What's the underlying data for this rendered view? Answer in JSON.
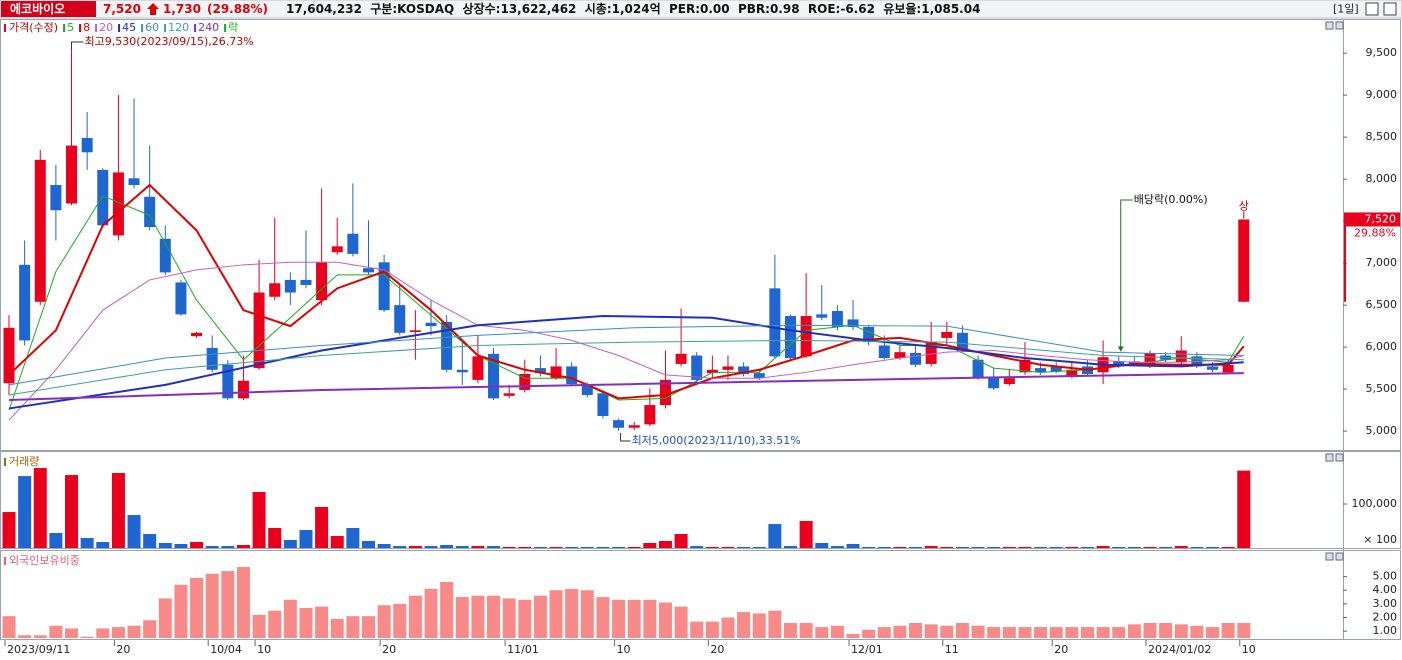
{
  "header": {
    "name": "에코바이오",
    "price": "7,520",
    "change": "1,730",
    "change_pct": "(29.88%)",
    "info": "17,604,232  구분:KOSDAQ  상장수:13,622,462  시총:1,024억  PER:0.00  PBR:0.98  ROE:-6.62  유보율:1,085.04",
    "period": "[1일]"
  },
  "chart_data": [
    {
      "type": "candlestick",
      "title": "가격(수정)",
      "ex_marker_label": "락",
      "up_color": "#e8001c",
      "down_color": "#1f66d1",
      "categories": [
        "2023/09/11",
        null,
        null,
        null,
        null,
        null,
        null,
        "20",
        null,
        null,
        null,
        null,
        null,
        "10/04",
        null,
        null,
        "10",
        null,
        null,
        null,
        null,
        null,
        null,
        null,
        "20",
        null,
        null,
        null,
        null,
        null,
        null,
        null,
        "11/01",
        null,
        null,
        null,
        null,
        null,
        null,
        "10",
        null,
        null,
        null,
        null,
        null,
        "20",
        null,
        null,
        null,
        null,
        null,
        null,
        null,
        null,
        "12/01",
        null,
        null,
        null,
        null,
        null,
        "11",
        null,
        null,
        null,
        null,
        null,
        null,
        "20",
        null,
        null,
        null,
        null,
        null,
        "2024/01/02",
        null,
        null,
        null,
        null,
        null,
        "10"
      ],
      "open": [
        5570,
        6980,
        6540,
        7930,
        7710,
        8490,
        8110,
        7330,
        8010,
        7790,
        7290,
        6770,
        6130,
        5990,
        5790,
        5390,
        5750,
        6600,
        6800,
        6800,
        6560,
        7130,
        7350,
        6940,
        7010,
        6500,
        6180,
        6290,
        6300,
        5730,
        5610,
        5920,
        5420,
        5490,
        5750,
        5630,
        5770,
        5560,
        5450,
        5130,
        5040,
        5080,
        5310,
        5800,
        5900,
        5690,
        5730,
        5770,
        5690,
        6700,
        6370,
        5890,
        6390,
        6430,
        6330,
        6240,
        6020,
        5870,
        5930,
        5800,
        6110,
        6170,
        5850,
        5650,
        5560,
        5700,
        5750,
        5770,
        5650,
        5770,
        5700,
        5830,
        5830,
        5770,
        5900,
        5820,
        5890,
        5770,
        5700,
        6540
      ],
      "high": [
        6380,
        7270,
        8350,
        8170,
        9530,
        8800,
        8130,
        9000,
        8960,
        8400,
        7450,
        6800,
        6180,
        6140,
        5850,
        5900,
        7040,
        7540,
        6890,
        7390,
        7890,
        7540,
        7950,
        7510,
        7100,
        6740,
        6440,
        6560,
        6380,
        6080,
        6140,
        5990,
        5550,
        5850,
        5900,
        5990,
        5820,
        5580,
        5480,
        5150,
        5110,
        5510,
        5960,
        6460,
        5940,
        5900,
        5900,
        5820,
        5730,
        7100,
        6390,
        6880,
        6740,
        6500,
        6560,
        6260,
        6140,
        6020,
        6020,
        6300,
        6300,
        6260,
        5900,
        5750,
        5730,
        6060,
        5820,
        5820,
        5820,
        5850,
        6080,
        5900,
        5890,
        5960,
        5940,
        6130,
        5940,
        5820,
        5850,
        7520
      ],
      "low": [
        5430,
        6020,
        6500,
        7270,
        7690,
        8110,
        7420,
        7270,
        7890,
        7390,
        6860,
        6370,
        6110,
        5700,
        5370,
        5370,
        5730,
        6560,
        6500,
        6700,
        6500,
        7100,
        7080,
        6860,
        6420,
        6140,
        5850,
        6140,
        5700,
        5550,
        5570,
        5370,
        5390,
        5460,
        5650,
        5610,
        5540,
        5400,
        5150,
        5000,
        5010,
        5060,
        5270,
        5770,
        5570,
        5630,
        5610,
        5650,
        5610,
        5870,
        5850,
        5870,
        6320,
        6200,
        6200,
        6020,
        5850,
        5850,
        5760,
        5770,
        6020,
        5940,
        5610,
        5490,
        5540,
        5670,
        5670,
        5690,
        5630,
        5650,
        5560,
        5750,
        5770,
        5750,
        5820,
        5800,
        5750,
        5700,
        5680,
        6540
      ],
      "close": [
        6230,
        6080,
        8230,
        7630,
        8400,
        8320,
        7450,
        8080,
        7930,
        7430,
        6890,
        6390,
        6170,
        5730,
        5390,
        5600,
        6650,
        6760,
        6650,
        6740,
        7010,
        7200,
        7110,
        6890,
        6440,
        6170,
        6200,
        6250,
        5730,
        5700,
        5890,
        5390,
        5450,
        5680,
        5690,
        5770,
        5560,
        5430,
        5180,
        5040,
        5070,
        5310,
        5610,
        5920,
        5610,
        5730,
        5770,
        5680,
        5630,
        5890,
        5870,
        6370,
        6350,
        6240,
        6240,
        6060,
        5870,
        5940,
        5790,
        6060,
        6180,
        5960,
        5630,
        5510,
        5630,
        5850,
        5700,
        5710,
        5730,
        5680,
        5880,
        5770,
        5800,
        5930,
        5850,
        5960,
        5770,
        5730,
        5790,
        7520
      ],
      "series": [
        {
          "name": "5",
          "color": "#1faa1f",
          "x": [
            0,
            3,
            6,
            9,
            12,
            15,
            18,
            21,
            24,
            27,
            30,
            33,
            36,
            39,
            42,
            45,
            48,
            51,
            54,
            57,
            60,
            63,
            66,
            69,
            72,
            75,
            78,
            79
          ],
          "values": [
            5250,
            6900,
            7800,
            7570,
            6560,
            5850,
            6350,
            6860,
            6860,
            6380,
            5900,
            5630,
            5630,
            5370,
            5390,
            5700,
            5700,
            6200,
            6260,
            6020,
            6020,
            5750,
            5700,
            5730,
            5800,
            5870,
            5820,
            6130
          ]
        },
        {
          "name": "8",
          "color": "#e00000",
          "x": [
            0,
            3,
            6,
            9,
            12,
            15,
            18,
            21,
            24,
            27,
            30,
            33,
            36,
            39,
            42,
            45,
            48,
            51,
            54,
            57,
            60,
            63,
            66,
            69,
            72,
            75,
            78,
            79
          ],
          "values": [
            5670,
            6200,
            7450,
            7930,
            7390,
            6440,
            6250,
            6700,
            6900,
            6440,
            5900,
            5730,
            5630,
            5390,
            5430,
            5630,
            5730,
            5900,
            6080,
            6110,
            6020,
            5900,
            5790,
            5730,
            5800,
            5790,
            5790,
            6010
          ]
        },
        {
          "name": "20",
          "color": "#c060c0",
          "x": [
            0,
            3,
            6,
            9,
            12,
            15,
            18,
            21,
            24,
            27,
            30,
            33,
            36,
            39,
            42,
            45,
            48,
            51,
            54,
            57,
            60,
            63,
            66,
            69,
            72,
            75,
            78,
            79
          ],
          "values": [
            5130,
            5730,
            6440,
            6800,
            6920,
            6980,
            7010,
            7010,
            6920,
            6560,
            6260,
            6200,
            6080,
            5900,
            5670,
            5630,
            5630,
            5700,
            5790,
            5870,
            5940,
            5960,
            5900,
            5850,
            5820,
            5820,
            5850,
            5900
          ]
        },
        {
          "name": "45",
          "color": "#1f2fbf",
          "x": [
            0,
            10,
            20,
            30,
            38,
            45,
            50,
            55,
            60,
            65,
            70,
            75,
            79
          ],
          "values": [
            5270,
            5550,
            5960,
            6260,
            6370,
            6350,
            6200,
            6080,
            5990,
            5870,
            5790,
            5770,
            5820
          ]
        },
        {
          "name": "60",
          "color": "#3a8ec0",
          "x": [
            0,
            10,
            20,
            30,
            40,
            50,
            60,
            70,
            79
          ],
          "values": [
            5550,
            5870,
            6020,
            6140,
            6230,
            6260,
            6250,
            5940,
            5900
          ]
        },
        {
          "name": "120",
          "color": "#40a0a0",
          "x": [
            0,
            10,
            20,
            30,
            40,
            50,
            60,
            70,
            79
          ],
          "values": [
            5430,
            5730,
            5900,
            6020,
            6060,
            6080,
            6060,
            5900,
            5850
          ]
        },
        {
          "name": "240",
          "color": "#8030c0",
          "x": [
            0,
            20,
            40,
            60,
            79
          ],
          "values": [
            5370,
            5490,
            5560,
            5630,
            5690
          ]
        }
      ],
      "annotations": [
        "최고9,530(2023/09/15),26.73%",
        "최저5,000(2023/11/10),33.51%",
        "배당락(0.00%)",
        "상"
      ],
      "price_tag": "7,520",
      "price_tag_change": "29.88%",
      "ylim": [
        4775,
        9895
      ],
      "yticks": [
        {
          "value": 5000,
          "label": "5,000"
        },
        {
          "value": 5500,
          "label": "5,500"
        },
        {
          "value": 6000,
          "label": "6,000"
        },
        {
          "value": 6500,
          "label": "6,500"
        },
        {
          "value": 7000,
          "label": "7,000"
        },
        {
          "value": 7500,
          "label": "7,500"
        },
        {
          "value": 8000,
          "label": "8,000"
        },
        {
          "value": 8500,
          "label": "8,500"
        },
        {
          "value": 9000,
          "label": "9,000"
        },
        {
          "value": 9500,
          "label": "9,500"
        }
      ]
    },
    {
      "type": "bar",
      "title": "거래량",
      "unit_label": "× 100",
      "values": [
        81800,
        163600,
        181800,
        34100,
        165900,
        22700,
        13600,
        170500,
        75000,
        31800,
        11400,
        9100,
        13600,
        4500,
        4500,
        6800,
        127300,
        45500,
        18200,
        40900,
        93200,
        27300,
        45500,
        15900,
        9100,
        4500,
        4500,
        4500,
        6800,
        4500,
        4500,
        4500,
        2300,
        2300,
        2300,
        2300,
        2300,
        2300,
        2300,
        2300,
        2300,
        11400,
        15900,
        31800,
        4500,
        2300,
        2300,
        2300,
        2300,
        54500,
        4500,
        61400,
        11400,
        4500,
        9100,
        2300,
        2300,
        2300,
        2300,
        4500,
        2300,
        2300,
        2300,
        2300,
        2300,
        2300,
        2300,
        2300,
        2300,
        2300,
        4500,
        2300,
        2300,
        2300,
        2300,
        4500,
        2300,
        2300,
        2300,
        176000
      ],
      "ylim": [
        0,
        216000
      ],
      "yticks": [
        {
          "value": 100000,
          "label": "100,000"
        }
      ]
    },
    {
      "type": "bar",
      "title": "외국인보유비중",
      "color": "#f88a8a",
      "values": [
        2.1,
        0.7,
        0.7,
        1.4,
        1.2,
        0.6,
        1.2,
        1.3,
        1.4,
        1.8,
        3.4,
        4.4,
        4.9,
        5.2,
        5.4,
        5.7,
        2.2,
        2.5,
        3.3,
        2.7,
        2.8,
        1.9,
        2.1,
        2.1,
        2.9,
        3.0,
        3.6,
        4.1,
        4.6,
        3.5,
        3.6,
        3.6,
        3.4,
        3.3,
        3.6,
        4.0,
        4.1,
        4.0,
        3.5,
        3.3,
        3.3,
        3.3,
        3.1,
        2.8,
        1.7,
        1.7,
        2.0,
        2.4,
        2.3,
        2.5,
        1.6,
        1.6,
        1.3,
        1.4,
        0.8,
        1.1,
        1.3,
        1.4,
        1.6,
        1.5,
        1.4,
        1.6,
        1.4,
        1.3,
        1.3,
        1.3,
        1.3,
        1.3,
        1.3,
        1.3,
        1.3,
        1.3,
        1.5,
        1.6,
        1.6,
        1.5,
        1.4,
        1.3,
        1.6,
        1.6
      ],
      "ylim": [
        0.5,
        6.8
      ],
      "yticks": [
        {
          "value": 1,
          "label": "1.00"
        },
        {
          "value": 2,
          "label": "2.00"
        },
        {
          "value": 3,
          "label": "3.00"
        },
        {
          "value": 4,
          "label": "4.00"
        },
        {
          "value": 5,
          "label": "5.00"
        }
      ]
    }
  ]
}
